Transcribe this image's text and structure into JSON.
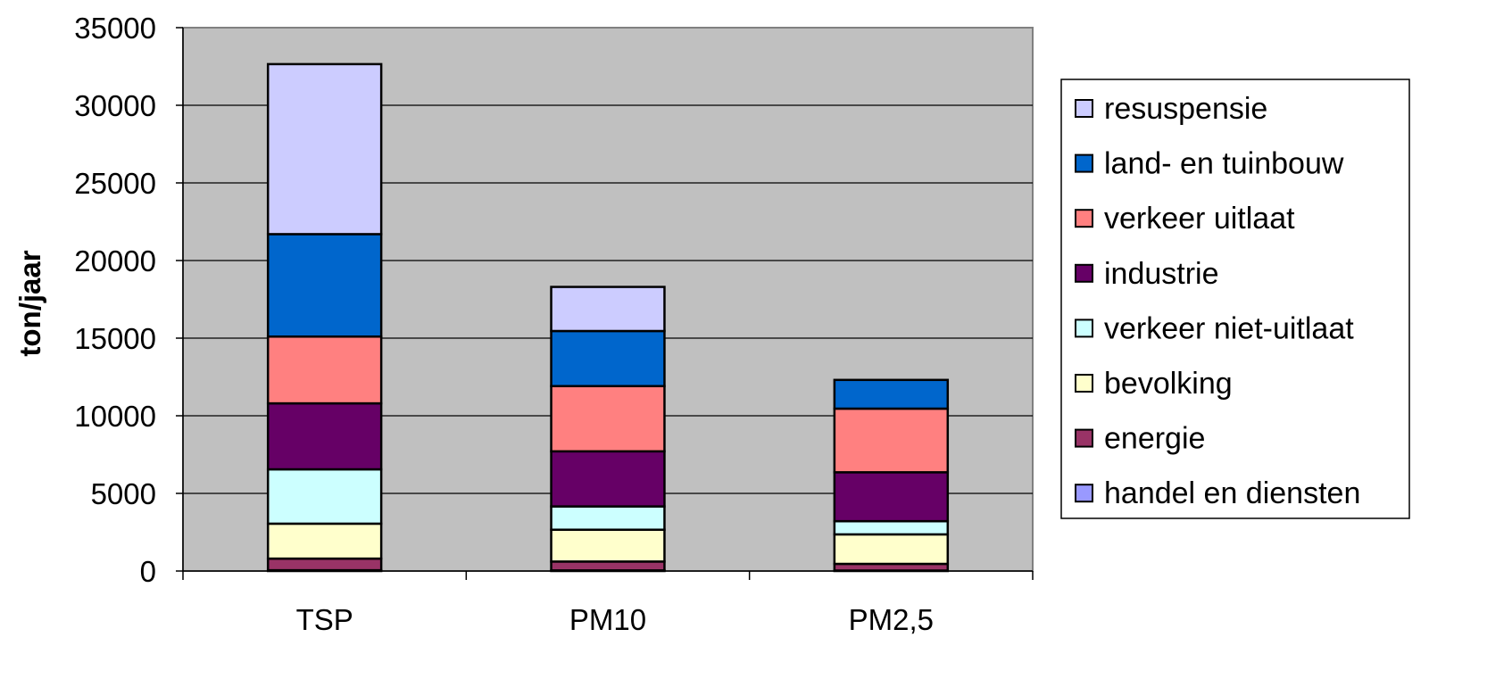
{
  "chart_data": {
    "type": "bar",
    "stacked": true,
    "title": "",
    "xlabel": "",
    "ylabel": "ton/jaar",
    "ylim": [
      0,
      35000
    ],
    "yticks": [
      0,
      5000,
      10000,
      15000,
      20000,
      25000,
      30000,
      35000
    ],
    "grid": true,
    "legend_position": "right",
    "plot_background": "#C0C0C0",
    "categories": [
      "TSP",
      "PM10",
      "PM2,5"
    ],
    "series": [
      {
        "name": "handel en diensten",
        "color": "#9999FF",
        "values": [
          50,
          40,
          30
        ]
      },
      {
        "name": "energie",
        "color": "#993366",
        "values": [
          750,
          570,
          430
        ]
      },
      {
        "name": "bevolking",
        "color": "#FFFFCC",
        "values": [
          2250,
          2050,
          1900
        ]
      },
      {
        "name": "verkeer niet-uitlaat",
        "color": "#CCFFFF",
        "values": [
          3500,
          1500,
          850
        ]
      },
      {
        "name": "industrie",
        "color": "#660066",
        "values": [
          4250,
          3550,
          3150
        ]
      },
      {
        "name": "verkeer uitlaat",
        "color": "#FF8080",
        "values": [
          4300,
          4200,
          4100
        ]
      },
      {
        "name": "land- en tuinbouw",
        "color": "#0066CC",
        "values": [
          6600,
          3550,
          1850
        ]
      },
      {
        "name": "resuspensie",
        "color": "#CCCCFF",
        "values": [
          10950,
          2840,
          0
        ]
      }
    ]
  }
}
